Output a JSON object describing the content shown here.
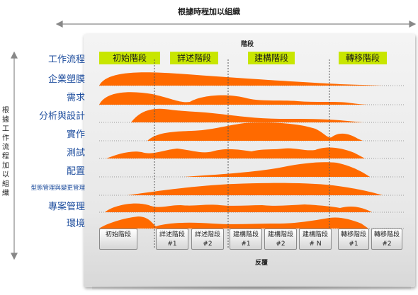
{
  "top_title": "根據時程加以組織",
  "left_title": "根據工作流程加以組織",
  "phases_header": "階段",
  "iterations_label": "反覆",
  "workflows_header": "工作流程",
  "colors": {
    "phase_bg": "#c8e600",
    "area_fill": "#ff6a00",
    "label_blue": "#1f4e9e"
  },
  "phases": [
    {
      "label": "初始階段"
    },
    {
      "label": "詳述階段"
    },
    {
      "label": "建構階段"
    },
    {
      "label": "轉移階段"
    }
  ],
  "workflows": [
    {
      "label": "企業塑膜"
    },
    {
      "label": "需求"
    },
    {
      "label": "分析與設計"
    },
    {
      "label": "實作"
    },
    {
      "label": "測試"
    },
    {
      "label": "配置"
    },
    {
      "label": "型態管理與變更管理"
    },
    {
      "label": "專案管理"
    },
    {
      "label": "環境"
    }
  ],
  "iterations": [
    {
      "line1": "初始階段",
      "line2": ""
    },
    {
      "line1": "詳述階段",
      "line2": "#1"
    },
    {
      "line1": "詳述階段",
      "line2": "#2"
    },
    {
      "line1": "建構階段",
      "line2": "#1"
    },
    {
      "line1": "建構階段",
      "line2": "#2"
    },
    {
      "line1": "建構階段",
      "line2": "# N"
    },
    {
      "line1": "轉移階段",
      "line2": "#1"
    },
    {
      "line1": "轉移階段",
      "line2": "#2"
    }
  ]
}
